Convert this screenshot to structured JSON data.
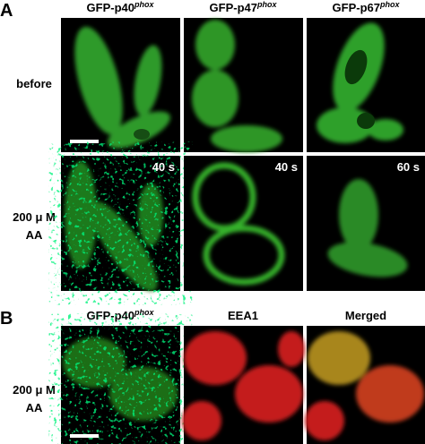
{
  "panel_a": {
    "label": "A",
    "columns": [
      {
        "name": "GFP-p40",
        "sup": "phox"
      },
      {
        "name": "GFP-p47",
        "sup": "phox"
      },
      {
        "name": "GFP-p67",
        "sup": "phox"
      }
    ],
    "rows": [
      {
        "label_lines": [
          "before"
        ]
      },
      {
        "label_lines": [
          "200 μ M",
          "AA"
        ],
        "times": [
          "40 s",
          "40 s",
          "60 s"
        ]
      }
    ]
  },
  "panel_b": {
    "label": "B",
    "columns": [
      {
        "name": "GFP-p40",
        "sup": "phox"
      },
      {
        "name": "EEA1"
      },
      {
        "name": "Merged"
      }
    ],
    "row": {
      "label_lines": [
        "200 μ M",
        "AA"
      ]
    }
  }
}
